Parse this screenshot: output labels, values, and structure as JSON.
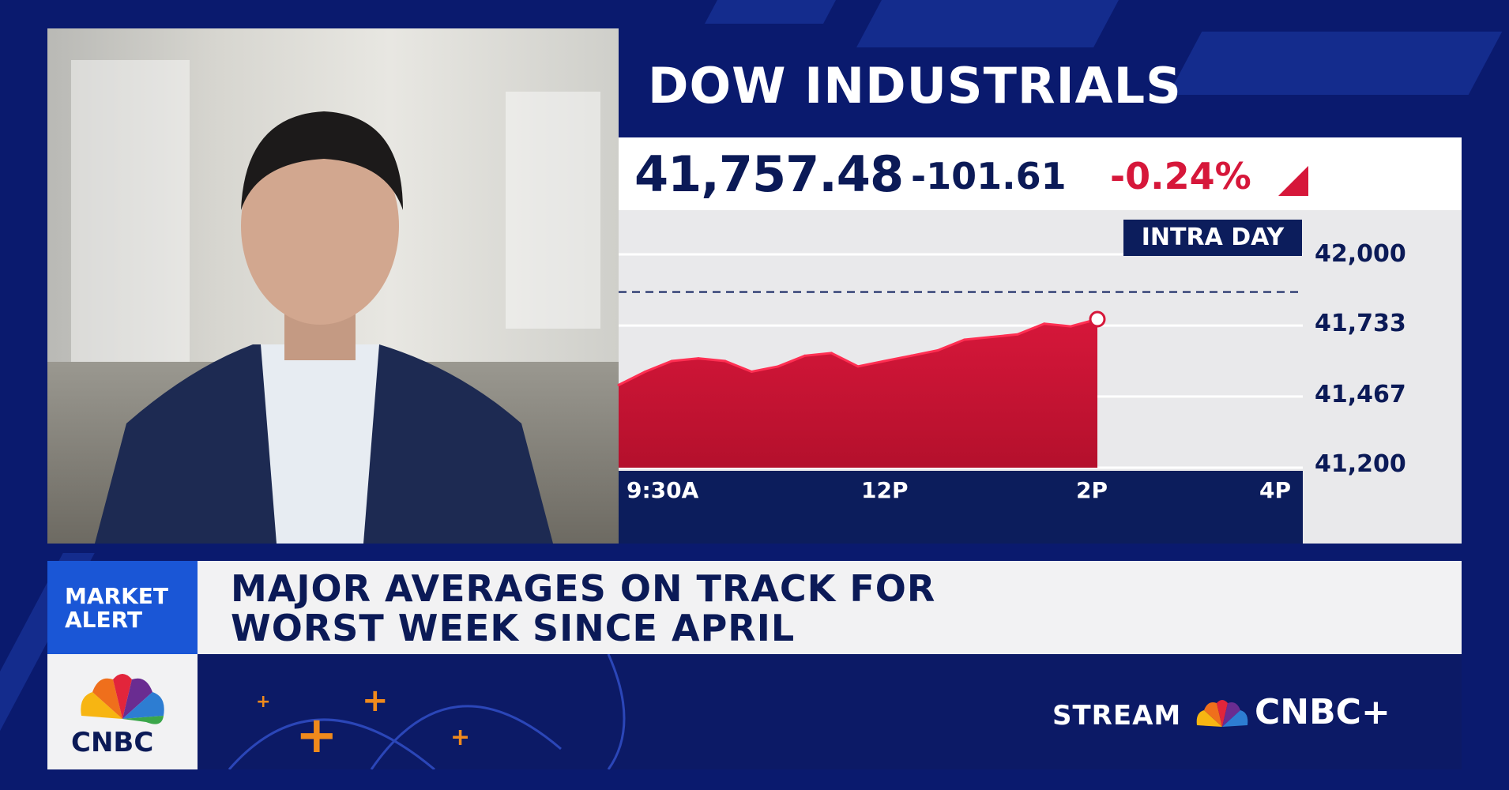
{
  "chart": {
    "title": "DOW INDUSTRIALS",
    "price": "41,757.48",
    "change": "-101.61",
    "percent": "-0.24%",
    "badge": "INTRA DAY",
    "y_ticks": [
      "42,000",
      "41,733",
      "41,467",
      "41,200"
    ],
    "x_ticks": [
      "9:30A",
      "12P",
      "2P",
      "4P"
    ]
  },
  "chart_data": {
    "type": "area",
    "ylim": [
      41200,
      42000
    ],
    "yticks": [
      42000,
      41733,
      41467,
      41200
    ],
    "reference_line": 41859,
    "x": [
      "9:30A",
      "9:45A",
      "10:00A",
      "10:15A",
      "10:30A",
      "10:45A",
      "11:00A",
      "11:15A",
      "11:30A",
      "11:45A",
      "12P",
      "12:15P",
      "12:30P",
      "12:45P",
      "1:00P",
      "1:15P",
      "1:30P",
      "1:45P",
      "2P"
    ],
    "values": [
      41510,
      41560,
      41600,
      41610,
      41600,
      41560,
      41580,
      41620,
      41630,
      41580,
      41600,
      41620,
      41640,
      41680,
      41690,
      41700,
      41740,
      41730,
      41757
    ],
    "color": "#d6173a"
  },
  "headline": {
    "tag_line1": "MARKET",
    "tag_line2": "ALERT",
    "line1": "MAJOR AVERAGES ON TRACK FOR",
    "line2": "WORST WEEK SINCE APRIL"
  },
  "footer": {
    "logo_text": "CNBC",
    "stream_label": "STREAM",
    "stream_brand": "CNBC+"
  },
  "colors": {
    "navy": "#0c1d5c",
    "red": "#d6173a",
    "blue_tag": "#1a56d6",
    "orange": "#f08a1c"
  }
}
